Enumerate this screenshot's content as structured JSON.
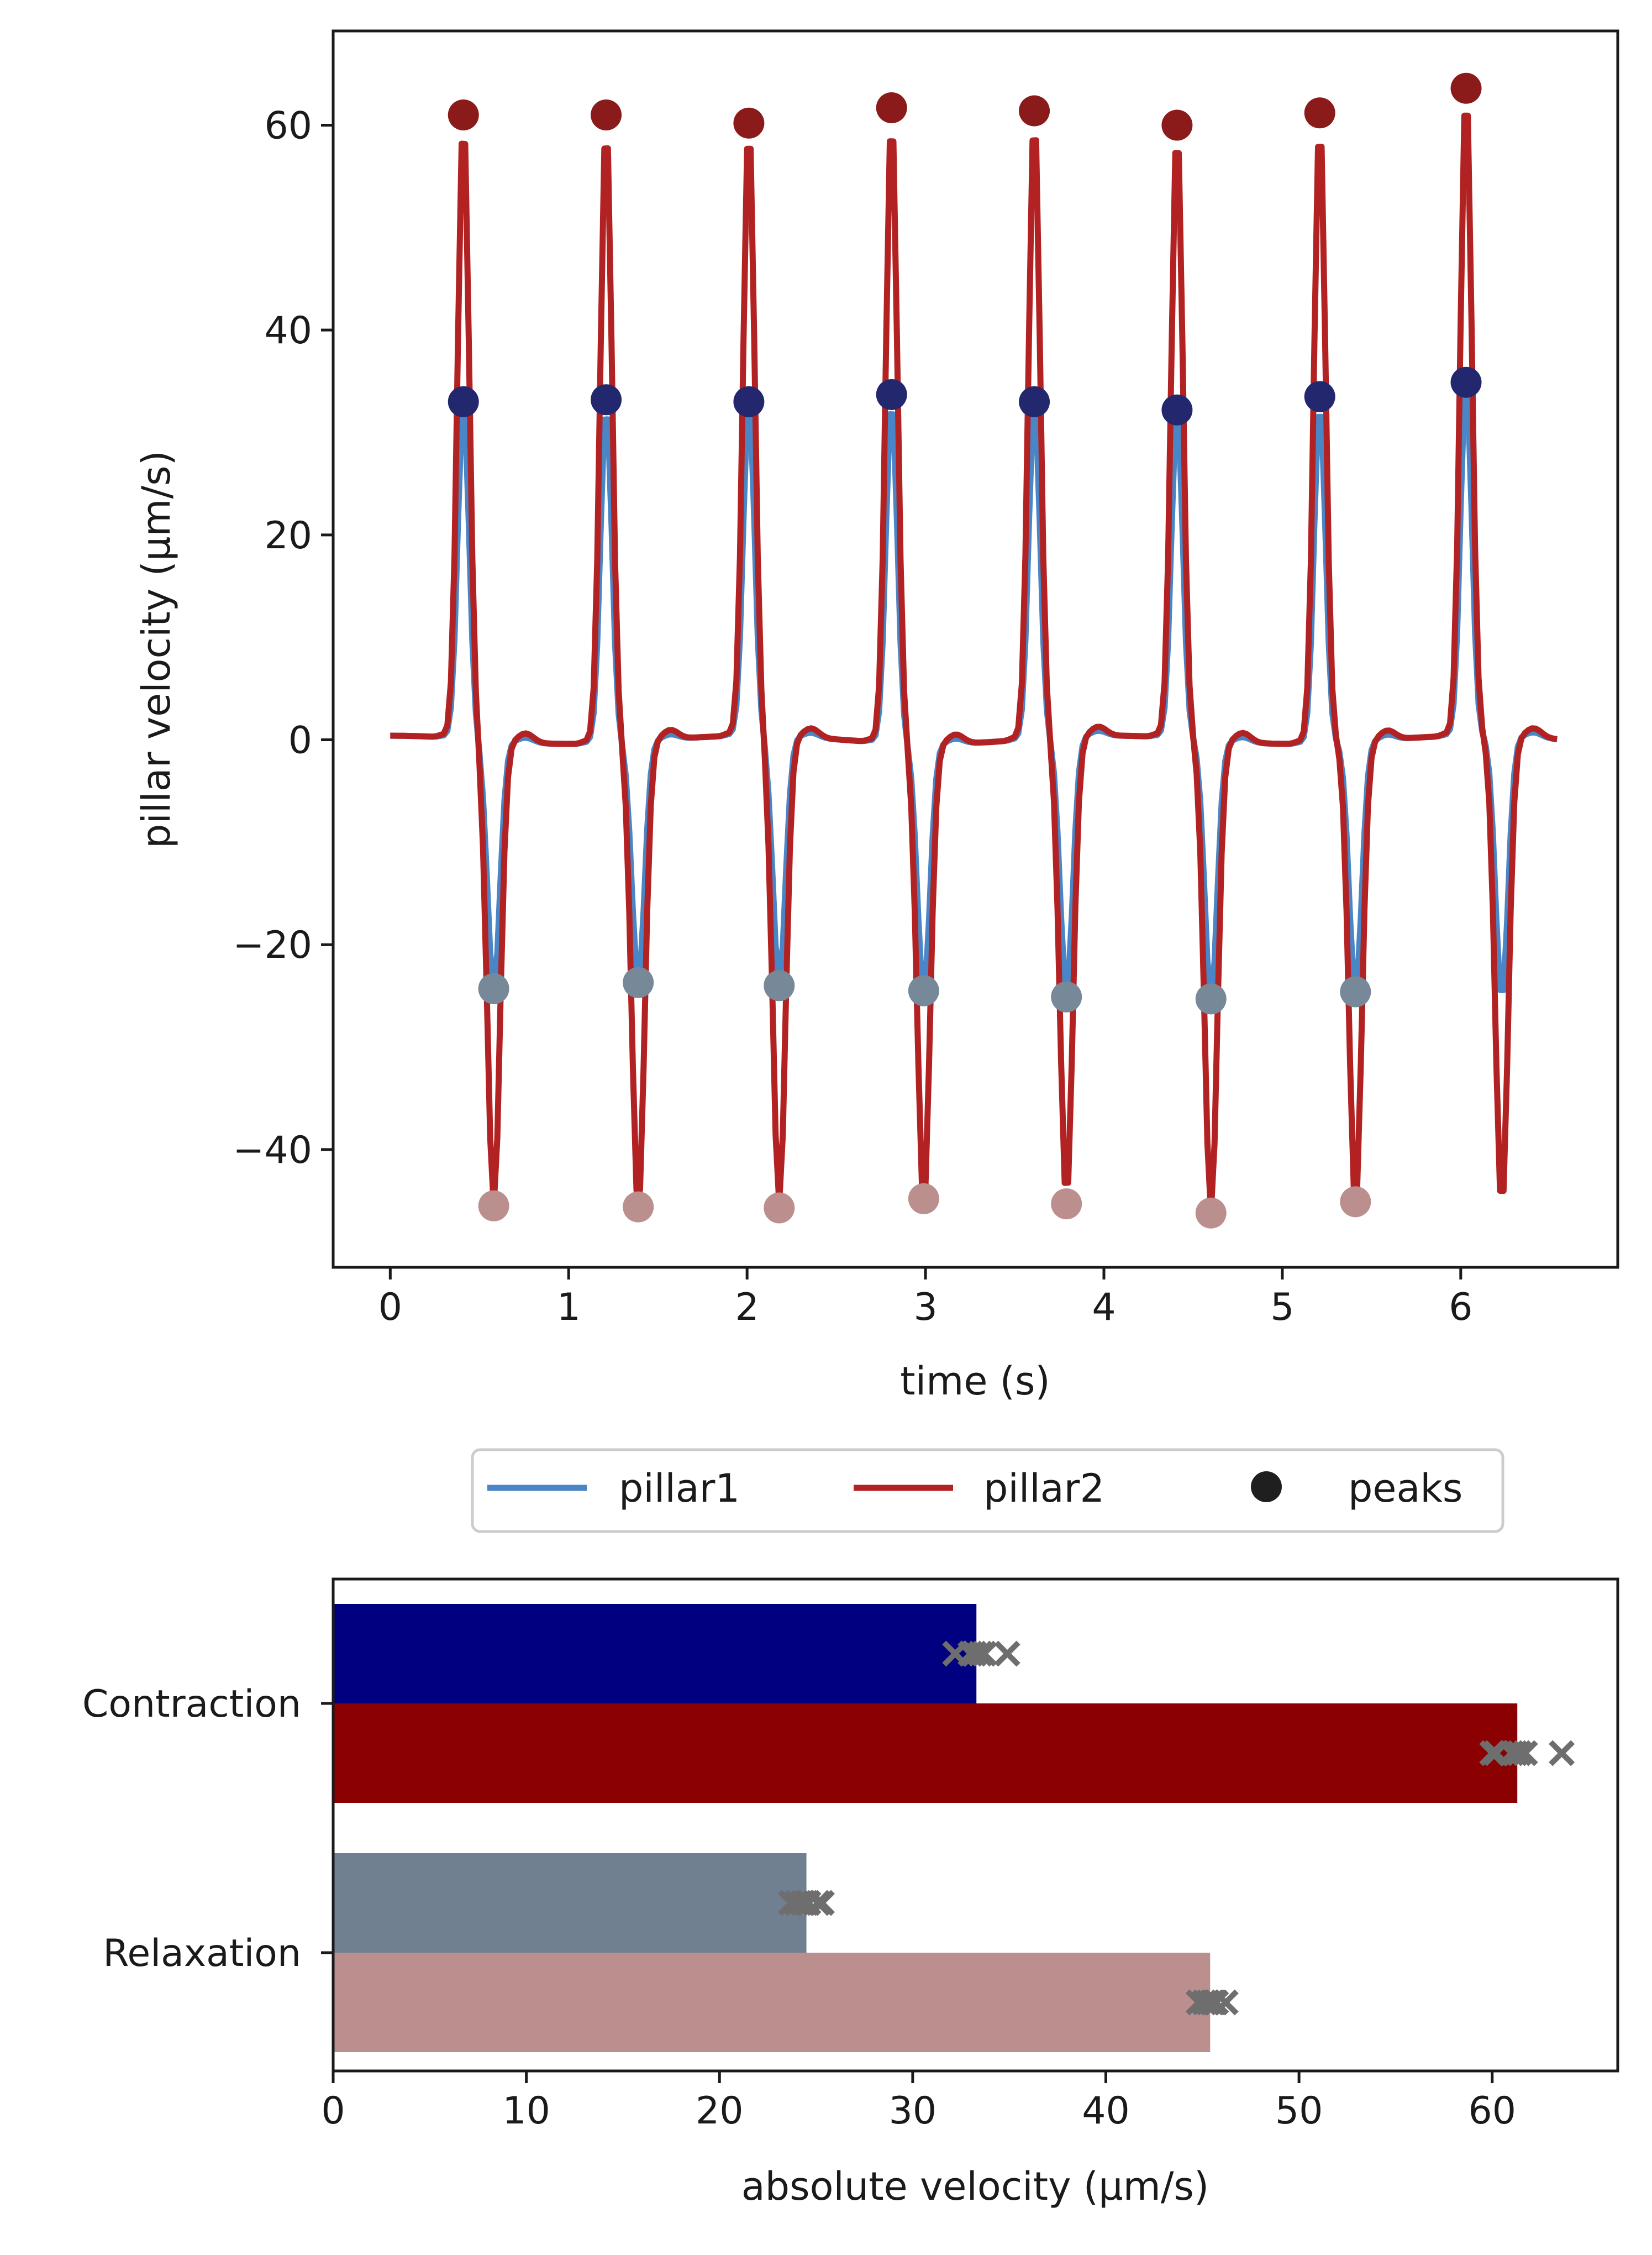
{
  "colors": {
    "pillar1": "#4a86c5",
    "pillar2": "#b22222",
    "pillar1_contraction_peak": "#22276e",
    "pillar2_contraction_peak": "#8b1a1a",
    "pillar1_relaxation_peak": "#778899",
    "pillar2_relaxation_peak": "#bc8f8f",
    "bar_pillar1_contraction": "#000080",
    "bar_pillar2_contraction": "#8b0000",
    "bar_pillar1_relaxation": "#708090",
    "bar_pillar2_relaxation": "#bc8f8f",
    "marker": "#6e6e6e",
    "legend_peak_marker": "#1f1f1f"
  },
  "chart_data": [
    {
      "type": "line",
      "xlabel": "time (s)",
      "ylabel": "pillar velocity (μm/s)",
      "xlim": [
        -0.32,
        6.88
      ],
      "ylim": [
        -51.5,
        69.2
      ],
      "xticks": [
        0,
        1,
        2,
        3,
        4,
        5,
        6
      ],
      "yticks": [
        -40,
        -20,
        0,
        20,
        40,
        60
      ],
      "xtick_labels": [
        "0",
        "1",
        "2",
        "3",
        "4",
        "5",
        "6"
      ],
      "ytick_labels": [
        "−40",
        "−20",
        "0",
        "20",
        "40",
        "60"
      ],
      "beat_period_s": 0.8,
      "duration_s": 6.55,
      "series": [
        {
          "name": "pillar1",
          "contraction_peaks": [
            {
              "t": 0.41,
              "v": 33.0
            },
            {
              "t": 1.21,
              "v": 33.2
            },
            {
              "t": 2.01,
              "v": 33.0
            },
            {
              "t": 2.81,
              "v": 33.7
            },
            {
              "t": 3.61,
              "v": 33.0
            },
            {
              "t": 4.41,
              "v": 32.2
            },
            {
              "t": 5.21,
              "v": 33.5
            },
            {
              "t": 6.03,
              "v": 34.9
            }
          ],
          "relaxation_peaks": [
            {
              "t": 0.58,
              "v": -24.3
            },
            {
              "t": 1.39,
              "v": -23.7
            },
            {
              "t": 2.18,
              "v": -24.0
            },
            {
              "t": 2.99,
              "v": -24.5
            },
            {
              "t": 3.79,
              "v": -25.1
            },
            {
              "t": 4.6,
              "v": -25.3
            },
            {
              "t": 5.41,
              "v": -24.6
            }
          ],
          "final_relaxation": {
            "t": 6.23,
            "v": -25.8
          }
        },
        {
          "name": "pillar2",
          "contraction_peaks": [
            {
              "t": 0.41,
              "v": 61.0
            },
            {
              "t": 1.21,
              "v": 61.0
            },
            {
              "t": 2.01,
              "v": 60.2
            },
            {
              "t": 2.81,
              "v": 61.7
            },
            {
              "t": 3.61,
              "v": 61.4
            },
            {
              "t": 4.41,
              "v": 60.0
            },
            {
              "t": 5.21,
              "v": 61.2
            },
            {
              "t": 6.03,
              "v": 63.6
            }
          ],
          "relaxation_peaks": [
            {
              "t": 0.58,
              "v": -45.5
            },
            {
              "t": 1.39,
              "v": -45.6
            },
            {
              "t": 2.18,
              "v": -45.7
            },
            {
              "t": 2.99,
              "v": -44.8
            },
            {
              "t": 3.79,
              "v": -45.3
            },
            {
              "t": 4.6,
              "v": -46.2
            },
            {
              "t": 5.41,
              "v": -45.1
            }
          ],
          "final_relaxation": {
            "t": 6.23,
            "v": -46.2
          }
        }
      ]
    },
    {
      "type": "bar",
      "orientation": "horizontal",
      "xlabel": "absolute velocity (μm/s)",
      "xlim": [
        0,
        66.5
      ],
      "xticks": [
        0,
        10,
        20,
        30,
        40,
        50,
        60
      ],
      "xtick_labels": [
        "0",
        "10",
        "20",
        "30",
        "40",
        "50",
        "60"
      ],
      "categories": [
        "Contraction",
        "Relaxation"
      ],
      "bars": [
        {
          "category": "Contraction",
          "series": "pillar1",
          "value": 33.3,
          "points": [
            33.0,
            33.2,
            33.0,
            33.7,
            33.0,
            32.2,
            33.5,
            34.9
          ]
        },
        {
          "category": "Contraction",
          "series": "pillar2",
          "value": 61.3,
          "points": [
            61.0,
            61.0,
            60.2,
            61.7,
            61.4,
            60.0,
            61.2,
            63.6
          ]
        },
        {
          "category": "Relaxation",
          "series": "pillar1",
          "value": 24.5,
          "points": [
            24.3,
            23.7,
            24.0,
            24.5,
            25.1,
            25.3,
            24.6
          ]
        },
        {
          "category": "Relaxation",
          "series": "pillar2",
          "value": 45.4,
          "points": [
            45.5,
            45.6,
            45.7,
            44.8,
            45.3,
            46.2,
            45.1
          ]
        }
      ]
    }
  ],
  "legend": {
    "pillar1": "pillar1",
    "pillar2": "pillar2",
    "peaks": "peaks"
  }
}
